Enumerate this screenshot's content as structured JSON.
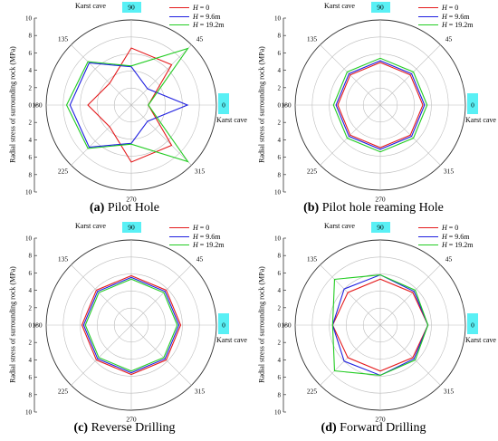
{
  "legend": [
    {
      "var": "H",
      "rest": " = 0",
      "color": "#e41a1c"
    },
    {
      "var": "H",
      "rest": " = 9.6m",
      "color": "#1f1fe0"
    },
    {
      "var": "H",
      "rest": " = 19.2m",
      "color": "#22cc22"
    }
  ],
  "cave_label": "Karst cave",
  "ylabel": "Radial stress of surrounding rock (MPa)",
  "angle_labels": [
    "0",
    "45",
    "90",
    "135",
    "180",
    "225",
    "270",
    "315"
  ],
  "left_axis_ticks": [
    "10",
    "8",
    "6",
    "4",
    "2",
    "0",
    "2",
    "4",
    "6",
    "8",
    "10"
  ],
  "chart_data": [
    {
      "type": "radar",
      "panel_letter": "(a)",
      "title": " Pilot Hole",
      "angles": [
        0,
        45,
        90,
        135,
        180,
        225,
        270,
        315
      ],
      "rlim": [
        0,
        10
      ],
      "series": [
        {
          "name": "H = 0",
          "values": [
            2.0,
            6.7,
            6.7,
            3.6,
            5.1,
            3.6,
            6.7,
            6.7
          ]
        },
        {
          "name": "H = 9.6m",
          "values": [
            6.6,
            2.7,
            4.5,
            7.0,
            7.2,
            7.0,
            4.5,
            2.7
          ]
        },
        {
          "name": "H = 19.2m",
          "values": [
            2.0,
            9.4,
            4.6,
            7.2,
            7.6,
            7.2,
            4.6,
            9.4
          ]
        }
      ]
    },
    {
      "type": "radar",
      "panel_letter": "(b)",
      "title": " Pilot hole reaming Hole",
      "angles": [
        0,
        45,
        90,
        135,
        180,
        225,
        270,
        315
      ],
      "rlim": [
        0,
        10
      ],
      "series": [
        {
          "name": "H = 0",
          "values": [
            5.0,
            5.0,
            5.0,
            5.0,
            5.0,
            5.0,
            5.0,
            5.0
          ]
        },
        {
          "name": "H = 9.6m",
          "values": [
            5.2,
            5.2,
            5.2,
            5.2,
            5.2,
            5.2,
            5.2,
            5.2
          ]
        },
        {
          "name": "H = 19.2m",
          "values": [
            5.5,
            5.5,
            5.5,
            5.5,
            5.5,
            5.5,
            5.5,
            5.5
          ]
        }
      ]
    },
    {
      "type": "radar",
      "panel_letter": "(c)",
      "title": " Reverse Drilling",
      "angles": [
        0,
        45,
        90,
        135,
        180,
        225,
        270,
        315
      ],
      "rlim": [
        0,
        10
      ],
      "series": [
        {
          "name": "H = 0",
          "values": [
            5.8,
            5.8,
            5.8,
            5.8,
            5.8,
            5.8,
            5.8,
            5.8
          ]
        },
        {
          "name": "H = 9.6m",
          "values": [
            5.6,
            5.6,
            5.6,
            5.6,
            5.6,
            5.6,
            5.6,
            5.6
          ]
        },
        {
          "name": "H = 19.2m",
          "values": [
            5.4,
            5.4,
            5.4,
            5.4,
            5.4,
            5.4,
            5.4,
            5.4
          ]
        }
      ]
    },
    {
      "type": "radar",
      "panel_letter": "(d)",
      "title": " Forward Drilling",
      "angles": [
        0,
        45,
        90,
        135,
        180,
        225,
        270,
        315
      ],
      "rlim": [
        0,
        10
      ],
      "series": [
        {
          "name": "H = 0",
          "values": [
            5.6,
            5.4,
            5.4,
            5.4,
            5.6,
            5.4,
            5.4,
            5.4
          ]
        },
        {
          "name": "H = 9.6m",
          "values": [
            5.6,
            5.6,
            5.9,
            6.0,
            5.6,
            6.0,
            5.9,
            5.6
          ]
        },
        {
          "name": "H = 19.2m",
          "values": [
            5.6,
            5.8,
            5.9,
            7.6,
            5.6,
            7.6,
            5.9,
            5.8
          ]
        }
      ]
    }
  ]
}
